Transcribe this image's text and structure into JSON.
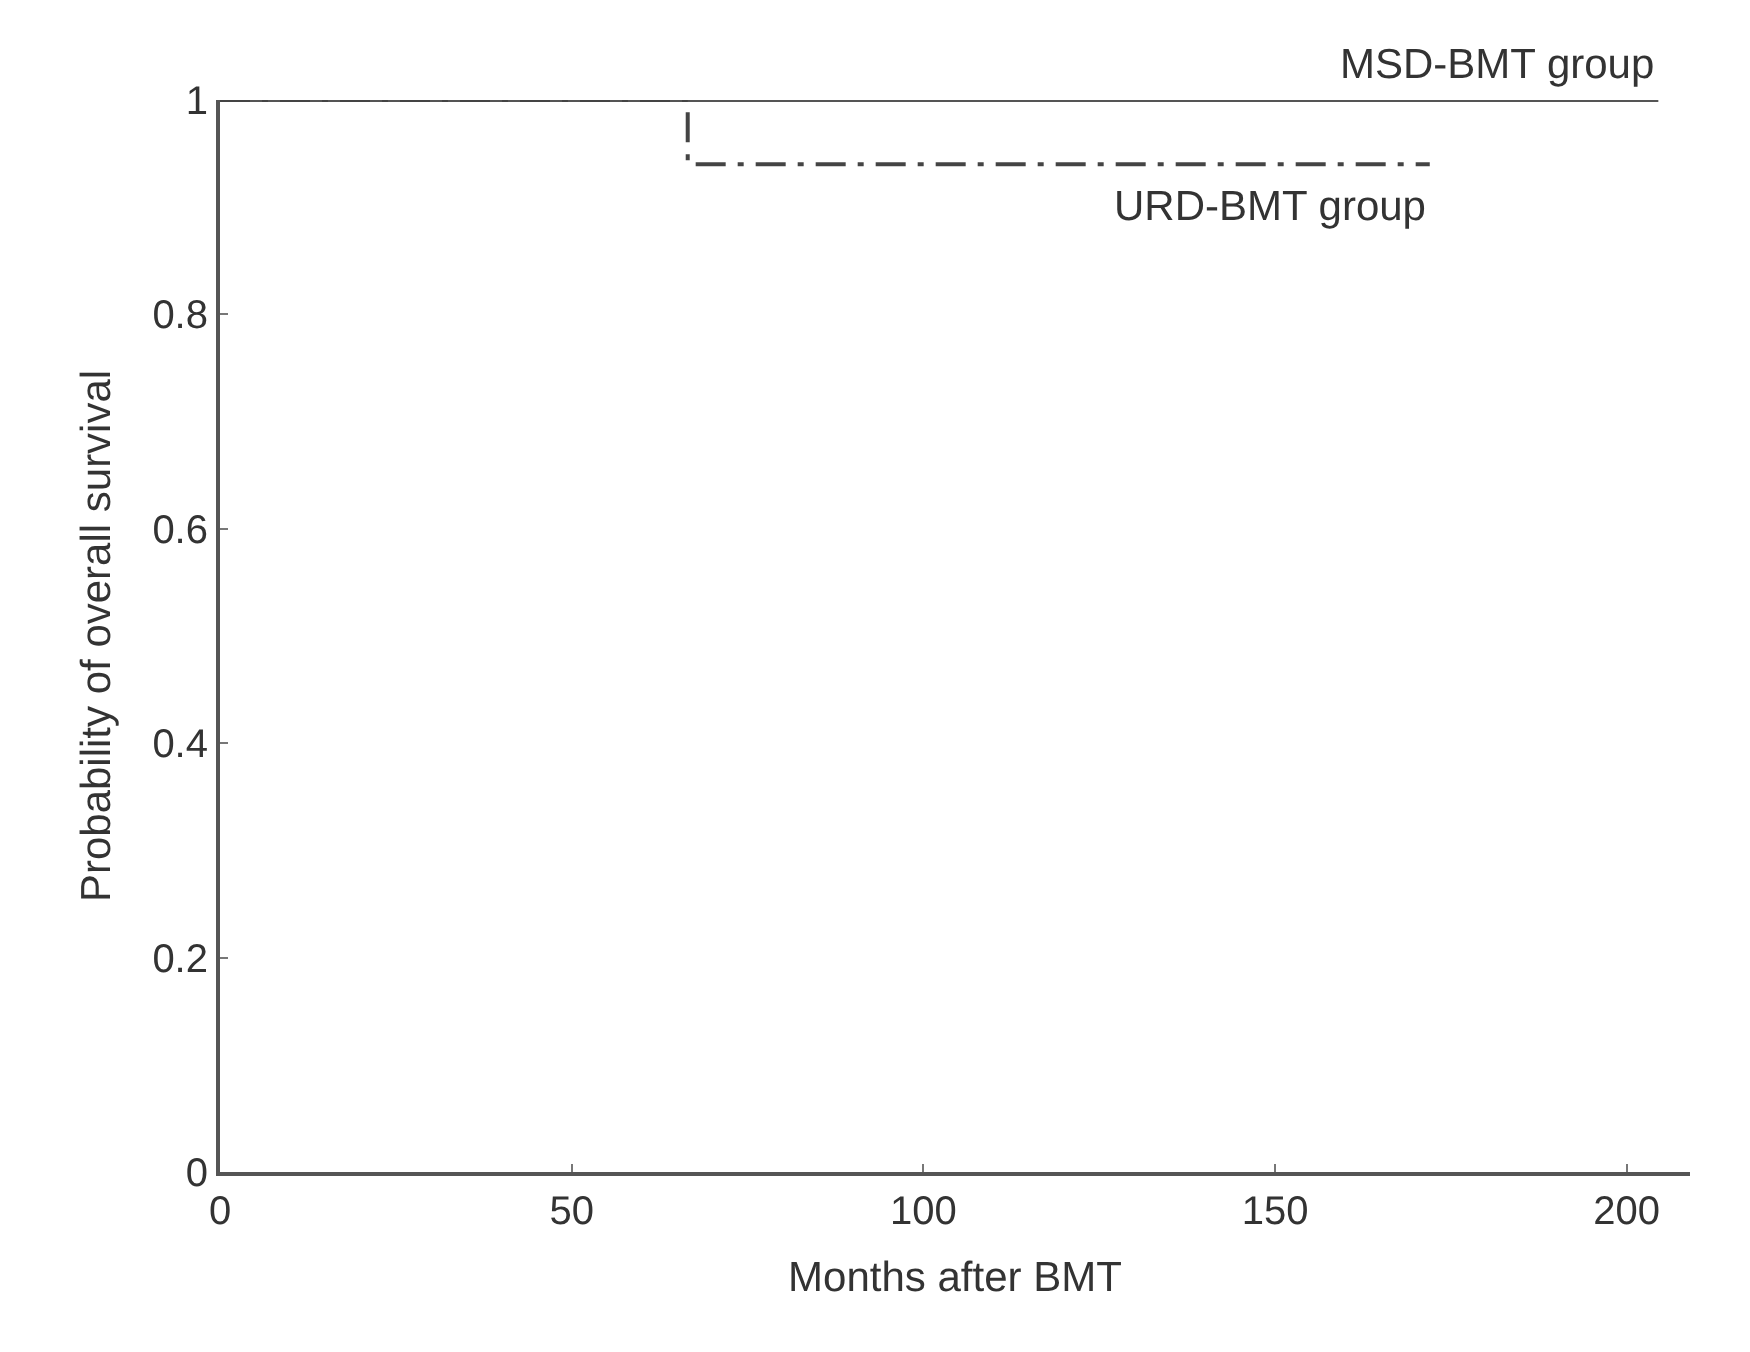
{
  "chart_data": {
    "type": "step",
    "xlabel": "Months after BMT",
    "ylabel": "Probability of overall survival",
    "xlim": [
      0,
      209
    ],
    "xticks": [
      0,
      50,
      100,
      150,
      200
    ],
    "ylim": [
      0,
      1
    ],
    "yticks": [
      0,
      0.2,
      0.4,
      0.6,
      0.8,
      1
    ],
    "legend": false,
    "marker": "none",
    "series": [
      {
        "name": "MSD-BMT group",
        "color": "#555555",
        "line_style": "solid",
        "x": [
          0,
          204.5
        ],
        "values": [
          1,
          1
        ]
      },
      {
        "name": "URD-BMT group",
        "color": "#444444",
        "line_style": "dashdot",
        "x": [
          0,
          66.5,
          172
        ],
        "values": [
          1,
          0.94,
          0.94
        ]
      }
    ]
  }
}
